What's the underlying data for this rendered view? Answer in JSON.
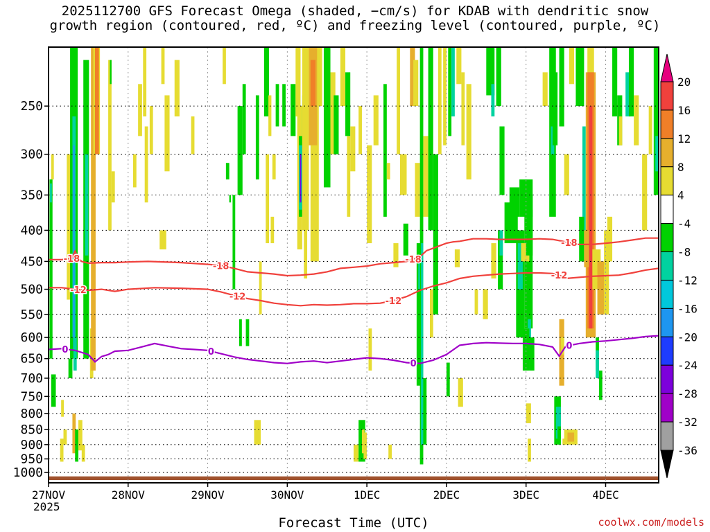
{
  "title": {
    "line1": "2025112700 GFS Forecast Omega (shaded, −cm/s) for KDAB with dendritic snow",
    "line2": "growth region (contoured, red, ºC) and freezing level (contoured, purple, ºC)"
  },
  "xlabel": "Forecast Time (UTC)",
  "credit": "coolwx.com/models",
  "year": "2025",
  "chart_data": {
    "type": "heatmap",
    "x_axis": {
      "range_hours": [
        0,
        184
      ],
      "ticks": [
        {
          "hour": 0,
          "label": "27NOV"
        },
        {
          "hour": 24,
          "label": "28NOV"
        },
        {
          "hour": 48,
          "label": "29NOV"
        },
        {
          "hour": 72,
          "label": "30NOV"
        },
        {
          "hour": 96,
          "label": "1DEC"
        },
        {
          "hour": 120,
          "label": "2DEC"
        },
        {
          "hour": 144,
          "label": "3DEC"
        },
        {
          "hour": 168,
          "label": "4DEC"
        }
      ]
    },
    "y_axis": {
      "scale": "log-pressure",
      "range": [
        1040,
        200
      ],
      "ticks": [
        250,
        300,
        350,
        400,
        450,
        500,
        550,
        600,
        650,
        700,
        750,
        800,
        850,
        900,
        950,
        1000
      ]
    },
    "grid": true,
    "colorbar": {
      "labels": [
        "20",
        "16",
        "12",
        "8",
        "4",
        "-4",
        "-8",
        "-12",
        "-16",
        "-20",
        "-24",
        "-28",
        "-32",
        "-36"
      ],
      "colors": [
        "#e6007e",
        "#f0413c",
        "#f07f28",
        "#e6af2d",
        "#e6dc32",
        "#ffffff",
        "#00d200",
        "#00d2a0",
        "#00c8dc",
        "#1e96f0",
        "#1e3cff",
        "#7d00dc",
        "#a000c8",
        "#a0a0a0",
        "#000000"
      ]
    },
    "contours": [
      {
        "label": "-18",
        "color": "#f0413c",
        "x": [
          0,
          4,
          7,
          8,
          9,
          10,
          12,
          16,
          20,
          24,
          30,
          40,
          48,
          52,
          56,
          60,
          64,
          68,
          72,
          76,
          80,
          84,
          88,
          92,
          96,
          100,
          104,
          108,
          112,
          114,
          116,
          118,
          120,
          122,
          124,
          126,
          128,
          132,
          136,
          140,
          144,
          148,
          152,
          156,
          160,
          164,
          168,
          172,
          176,
          180,
          184
        ],
        "y": [
          447,
          447,
          445,
          433,
          445,
          450,
          453,
          452,
          452,
          451,
          450,
          452,
          455,
          457,
          462,
          468,
          470,
          472,
          475,
          474,
          472,
          468,
          462,
          460,
          458,
          454,
          452,
          450,
          442,
          432,
          428,
          424,
          420,
          418,
          417,
          415,
          413,
          413,
          414,
          414,
          414,
          413,
          414,
          418,
          422,
          422,
          420,
          418,
          415,
          412,
          412
        ],
        "label_x": [
          7,
          52,
          110,
          157
        ]
      },
      {
        "label": "-12",
        "color": "#f0413c",
        "x": [
          0,
          4,
          8,
          12,
          16,
          20,
          24,
          32,
          40,
          48,
          52,
          56,
          60,
          64,
          68,
          72,
          76,
          80,
          84,
          88,
          92,
          96,
          100,
          104,
          108,
          112,
          116,
          120,
          124,
          128,
          132,
          136,
          140,
          144,
          148,
          152,
          154,
          156,
          160,
          164,
          168,
          172,
          176,
          180,
          184
        ],
        "y": [
          497,
          497,
          500,
          502,
          500,
          504,
          500,
          497,
          498,
          500,
          505,
          512,
          518,
          522,
          527,
          530,
          532,
          530,
          531,
          530,
          528,
          528,
          527,
          522,
          514,
          502,
          494,
          488,
          480,
          476,
          474,
          472,
          471,
          470,
          470,
          471,
          474,
          480,
          478,
          476,
          475,
          474,
          470,
          465,
          462
        ],
        "label_x": [
          9,
          57,
          104,
          154
        ]
      },
      {
        "label": "0",
        "color": "#a000c8",
        "x": [
          0,
          4,
          8,
          12,
          14,
          16,
          18,
          20,
          24,
          28,
          32,
          36,
          40,
          44,
          48,
          52,
          56,
          60,
          64,
          68,
          72,
          76,
          80,
          84,
          88,
          92,
          96,
          100,
          104,
          108,
          112,
          116,
          120,
          124,
          128,
          132,
          136,
          140,
          144,
          148,
          152,
          154,
          156,
          160,
          164,
          168,
          172,
          176,
          180,
          184
        ],
        "y": [
          628,
          626,
          630,
          640,
          658,
          645,
          640,
          632,
          630,
          622,
          614,
          620,
          626,
          628,
          630,
          638,
          646,
          652,
          656,
          660,
          662,
          658,
          656,
          660,
          656,
          652,
          648,
          650,
          654,
          660,
          662,
          654,
          640,
          618,
          614,
          612,
          613,
          614,
          614,
          616,
          622,
          644,
          620,
          614,
          610,
          608,
          605,
          602,
          598,
          596
        ],
        "label_x": [
          5,
          49,
          110,
          157
        ]
      }
    ]
  }
}
